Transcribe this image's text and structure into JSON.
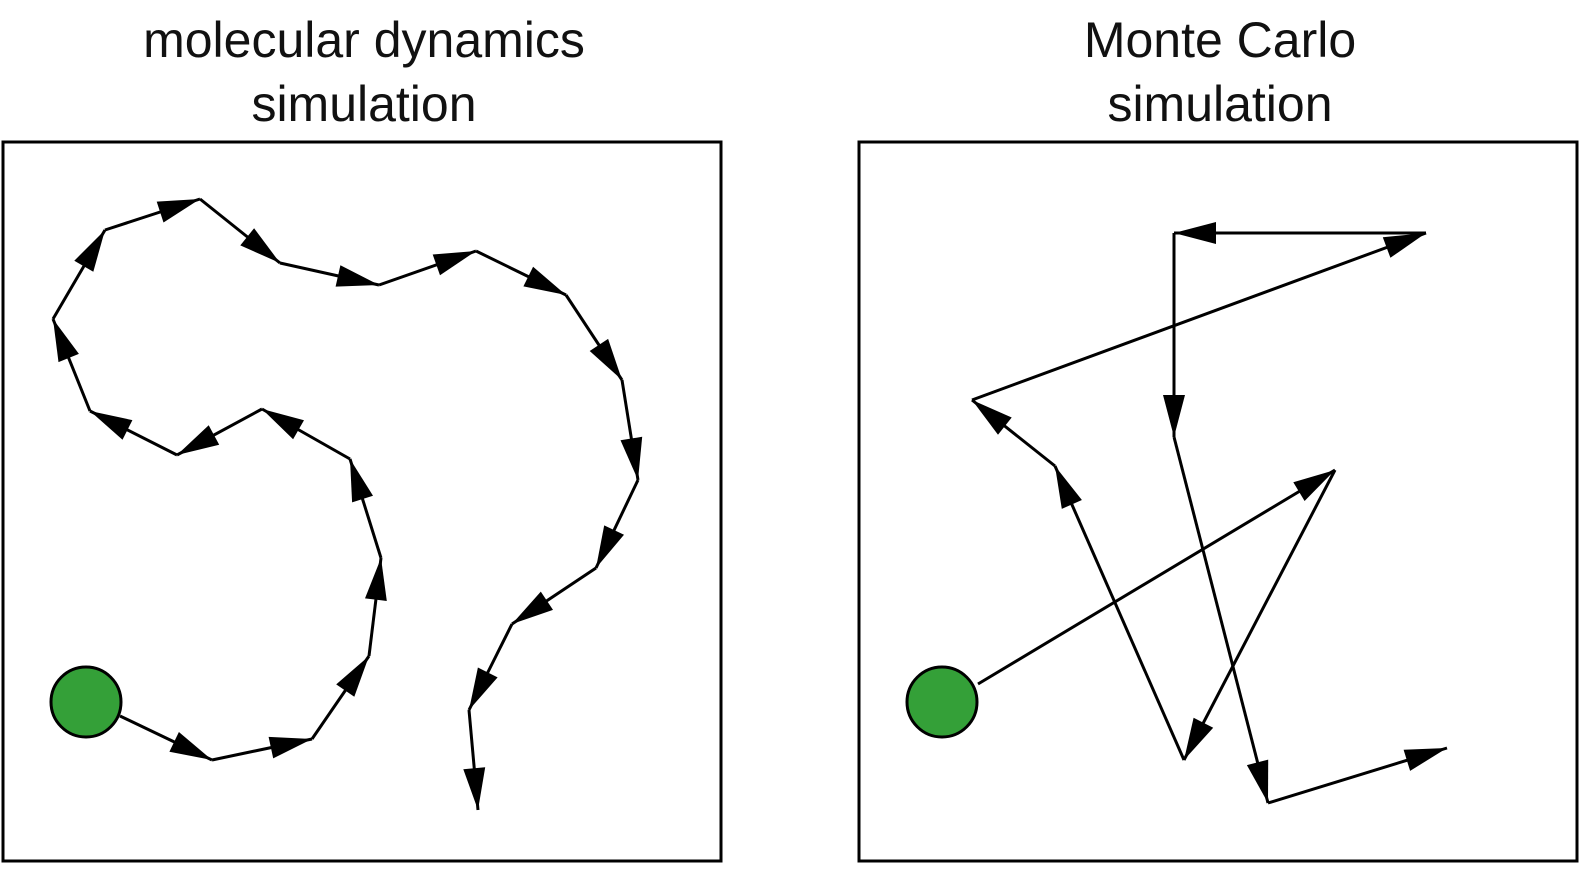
{
  "panels": [
    {
      "id": "md",
      "title_line1": "molecular dynamics",
      "title_line2": "simulation"
    },
    {
      "id": "mc",
      "title_line1": "Monte Carlo",
      "title_line2": "simulation"
    }
  ],
  "colors": {
    "stroke": "#000000",
    "start_fill": "#34a038",
    "background": "#ffffff"
  },
  "icons": {
    "start": "start-particle-icon",
    "step": "step-arrow-icon"
  }
}
